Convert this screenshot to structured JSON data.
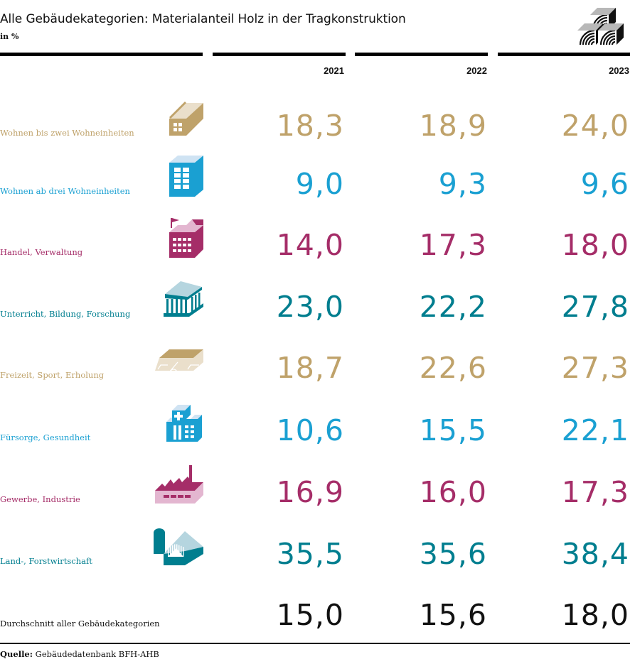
{
  "header": {
    "title": "Alle Gebäudekategorien: Materialanteil Holz in der Tragkonstruktion",
    "unit": "in %",
    "logo_icon": "stacked-timber-beams-icon"
  },
  "colors": {
    "gold": "#BFA26A",
    "gold_light": "#EADFCB",
    "blue": "#1AA0D2",
    "blue_light": "#CFE3F3",
    "magenta": "#A52D68",
    "magenta_light": "#E3B6D0",
    "teal": "#007E8F",
    "teal_light": "#B5D5DF",
    "black": "#111111"
  },
  "chart_data": {
    "type": "table",
    "title": "Alle Gebäudekategorien: Materialanteil Holz in der Tragkonstruktion",
    "unit": "in %",
    "columns": [
      "2021",
      "2022",
      "2023"
    ],
    "rows": [
      {
        "category": "Wohnen bis zwei Wohneinheiten",
        "icon": "house-icon",
        "color": "gold",
        "values": [
          "18,3",
          "18,9",
          "24,0"
        ]
      },
      {
        "category": "Wohnen ab drei Wohneinheiten",
        "icon": "apartment-building-icon",
        "color": "blue",
        "values": [
          "9,0",
          "9,3",
          "9,6"
        ]
      },
      {
        "category": "Handel, Verwaltung",
        "icon": "office-building-icon",
        "color": "magenta",
        "values": [
          "14,0",
          "17,3",
          "18,0"
        ]
      },
      {
        "category": "Unterricht, Bildung, Forschung",
        "icon": "temple-icon",
        "color": "teal",
        "values": [
          "23,0",
          "22,2",
          "27,8"
        ]
      },
      {
        "category": "Freizeit, Sport, Erholung",
        "icon": "sports-hall-icon",
        "color": "gold",
        "values": [
          "18,7",
          "22,6",
          "27,3"
        ]
      },
      {
        "category": "Fürsorge, Gesundheit",
        "icon": "hospital-icon",
        "color": "blue",
        "values": [
          "10,6",
          "15,5",
          "22,1"
        ]
      },
      {
        "category": "Gewerbe, Industrie",
        "icon": "factory-icon",
        "color": "magenta",
        "values": [
          "16,9",
          "16,0",
          "17,3"
        ]
      },
      {
        "category": "Land-, Forstwirtschaft",
        "icon": "barn-silo-icon",
        "color": "teal",
        "values": [
          "35,5",
          "35,6",
          "38,4"
        ]
      }
    ],
    "average": {
      "category": "Durchschnitt aller Gebäudekategorien",
      "color": "black",
      "values": [
        "15,0",
        "15,6",
        "18,0"
      ]
    }
  },
  "footer": {
    "source_label": "Quelle:",
    "source_text": " Gebäudedatenbank BFH-AHB"
  }
}
